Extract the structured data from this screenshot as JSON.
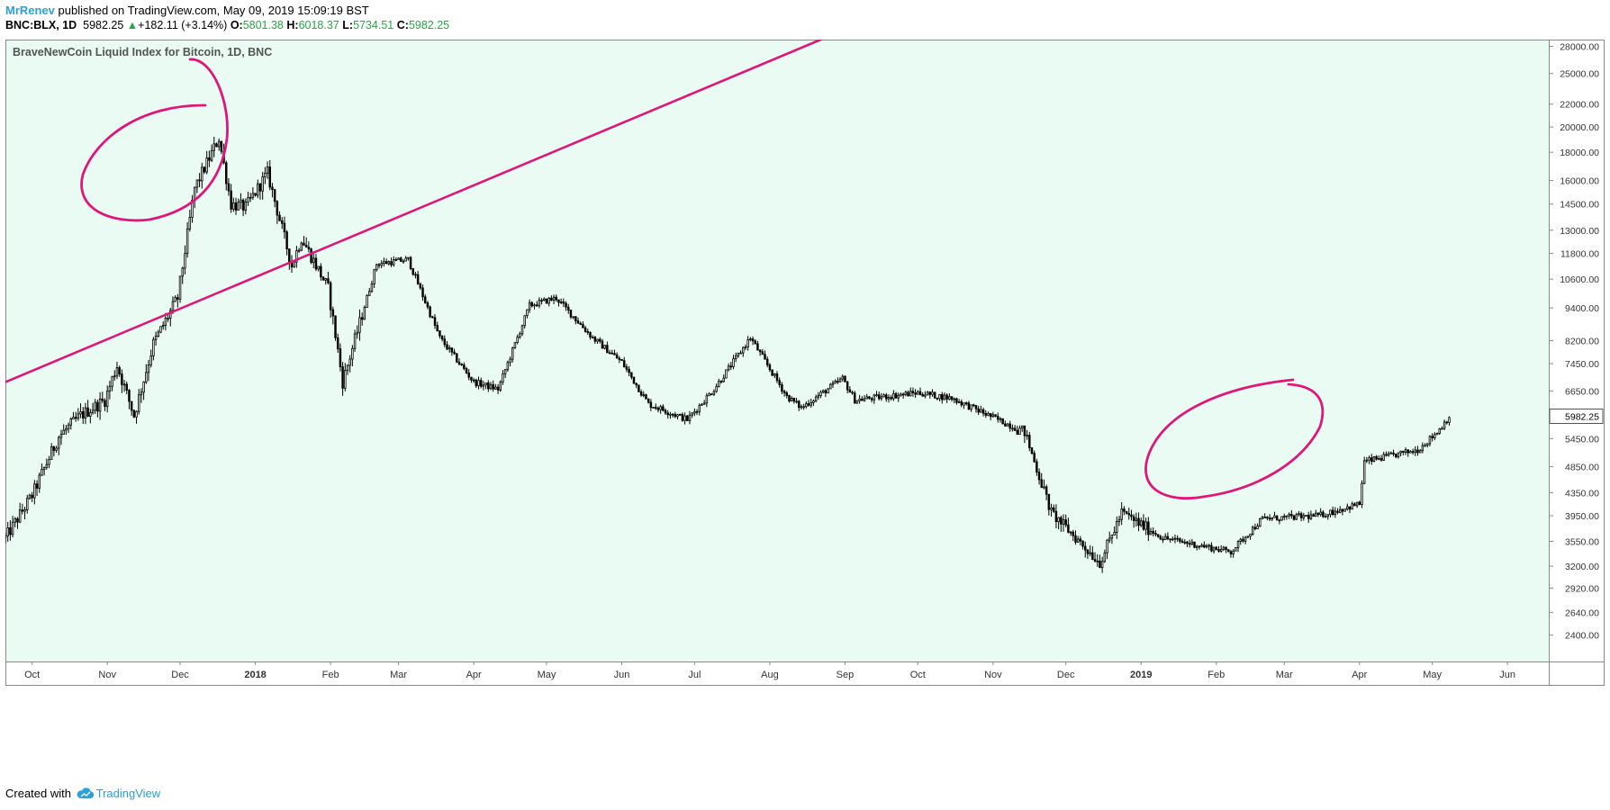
{
  "header": {
    "author": "MrRenev",
    "published_text": "published on TradingView.com, May 09, 2019 15:09:19 BST",
    "symbol": "BNC:BLX, 1D",
    "last": "5982.25",
    "change_arrow": "▲",
    "change": "+182.11 (+3.14%)",
    "o_label": "O:",
    "o_value": "5801.38",
    "h_label": "H:",
    "h_value": "6018.37",
    "l_label": "L:",
    "l_value": "5734.51",
    "c_label": "C:",
    "c_value": "5982.25"
  },
  "footer": {
    "created_with": "Created with",
    "brand": "TradingView"
  },
  "colors": {
    "plot_bg": "#e9fbf2",
    "candle": "#000000",
    "drawing": "#e0177a",
    "axis_text": "#333333",
    "price_tag_border": "#555555"
  },
  "chart_data": {
    "type": "candlestick",
    "title": "BraveNewCoin Liquid Index for Bitcoin, 1D, BNC",
    "scale": "log",
    "ylim": [
      2150,
      28800
    ],
    "y_ticks": [
      "28000.00",
      "25000.00",
      "22000.00",
      "20000.00",
      "18000.00",
      "16000.00",
      "14500.00",
      "13000.00",
      "11800.00",
      "10600.00",
      "9400.00",
      "8200.00",
      "7450.00",
      "6650.00",
      "5982.25",
      "5450.00",
      "4850.00",
      "4350.00",
      "3950.00",
      "3550.00",
      "3200.00",
      "2920.00",
      "2640.00",
      "2400.00"
    ],
    "current_price_label": "5982.25",
    "x_range": [
      "2017-09-20",
      "2019-06-18"
    ],
    "x_ticks": [
      {
        "date": "2017-10-01",
        "label": "Oct"
      },
      {
        "date": "2017-11-01",
        "label": "Nov"
      },
      {
        "date": "2017-12-01",
        "label": "Dec"
      },
      {
        "date": "2018-01-01",
        "label": "2018"
      },
      {
        "date": "2018-02-01",
        "label": "Feb"
      },
      {
        "date": "2018-03-01",
        "label": "Mar"
      },
      {
        "date": "2018-04-01",
        "label": "Apr"
      },
      {
        "date": "2018-05-01",
        "label": "May"
      },
      {
        "date": "2018-06-01",
        "label": "Jun"
      },
      {
        "date": "2018-07-01",
        "label": "Jul"
      },
      {
        "date": "2018-08-01",
        "label": "Aug"
      },
      {
        "date": "2018-09-01",
        "label": "Sep"
      },
      {
        "date": "2018-10-01",
        "label": "Oct"
      },
      {
        "date": "2018-11-01",
        "label": "Nov"
      },
      {
        "date": "2018-12-01",
        "label": "Dec"
      },
      {
        "date": "2019-01-01",
        "label": "2019"
      },
      {
        "date": "2019-02-01",
        "label": "Feb"
      },
      {
        "date": "2019-03-01",
        "label": "Mar"
      },
      {
        "date": "2019-04-01",
        "label": "Apr"
      },
      {
        "date": "2019-05-01",
        "label": "May"
      },
      {
        "date": "2019-06-01",
        "label": "Jun"
      }
    ],
    "approx_close_path": [
      [
        "2017-09-20",
        3600
      ],
      [
        "2017-10-01",
        4300
      ],
      [
        "2017-10-12",
        5500
      ],
      [
        "2017-10-21",
        6000
      ],
      [
        "2017-10-31",
        6400
      ],
      [
        "2017-11-05",
        7400
      ],
      [
        "2017-11-12",
        6000
      ],
      [
        "2017-11-20",
        8100
      ],
      [
        "2017-11-30",
        9800
      ],
      [
        "2017-12-07",
        15500
      ],
      [
        "2017-12-17",
        19100
      ],
      [
        "2017-12-22",
        14500
      ],
      [
        "2017-12-28",
        14300
      ],
      [
        "2018-01-06",
        16500
      ],
      [
        "2018-01-16",
        11200
      ],
      [
        "2018-01-20",
        12600
      ],
      [
        "2018-01-31",
        10200
      ],
      [
        "2018-02-06",
        6900
      ],
      [
        "2018-02-20",
        11300
      ],
      [
        "2018-03-05",
        11500
      ],
      [
        "2018-03-18",
        8300
      ],
      [
        "2018-04-01",
        6900
      ],
      [
        "2018-04-11",
        6700
      ],
      [
        "2018-04-24",
        9500
      ],
      [
        "2018-05-05",
        9800
      ],
      [
        "2018-05-20",
        8300
      ],
      [
        "2018-06-01",
        7500
      ],
      [
        "2018-06-12",
        6300
      ],
      [
        "2018-06-28",
        5900
      ],
      [
        "2018-07-09",
        6700
      ],
      [
        "2018-07-24",
        8300
      ],
      [
        "2018-08-08",
        6500
      ],
      [
        "2018-08-14",
        6200
      ],
      [
        "2018-08-31",
        7000
      ],
      [
        "2018-09-05",
        6400
      ],
      [
        "2018-10-01",
        6600
      ],
      [
        "2018-10-15",
        6450
      ],
      [
        "2018-11-14",
        5600
      ],
      [
        "2018-11-25",
        4000
      ],
      [
        "2018-12-15",
        3250
      ],
      [
        "2018-12-24",
        4000
      ],
      [
        "2019-01-10",
        3600
      ],
      [
        "2019-02-07",
        3400
      ],
      [
        "2019-02-20",
        3900
      ],
      [
        "2019-03-15",
        3950
      ],
      [
        "2019-04-01",
        4150
      ],
      [
        "2019-04-03",
        4950
      ],
      [
        "2019-04-25",
        5200
      ],
      [
        "2019-05-03",
        5600
      ],
      [
        "2019-05-08",
        5982
      ]
    ],
    "annotations": [
      {
        "type": "trendline",
        "from": [
          "2017-09-20",
          6900
        ],
        "to": [
          "2018-08-22",
          28800
        ]
      },
      {
        "type": "ellipse",
        "note": "around Dec 2017 peak"
      },
      {
        "type": "ellipse",
        "note": "around Apr–May 2019 rally"
      }
    ]
  }
}
